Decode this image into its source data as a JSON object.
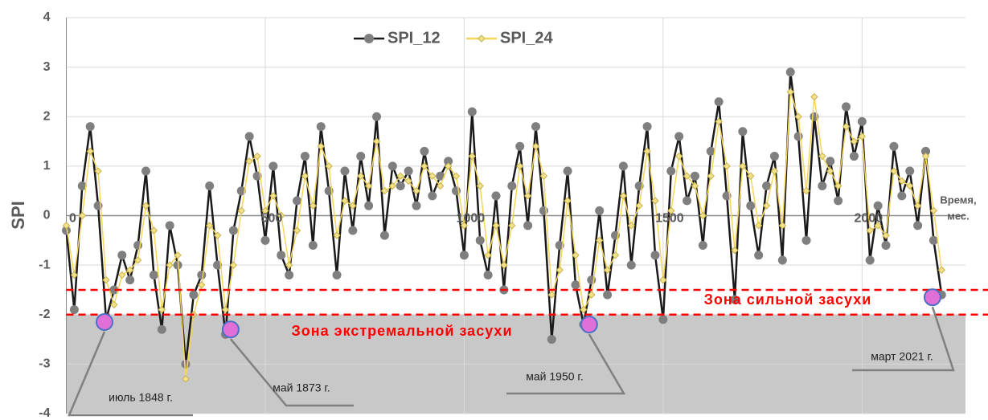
{
  "chart_data": {
    "type": "line",
    "y_label": "SPI",
    "x_label_lines": [
      "Время,",
      "мес."
    ],
    "x": [
      0,
      20,
      40,
      60,
      80,
      100,
      120,
      140,
      160,
      180,
      200,
      220,
      240,
      260,
      280,
      300,
      320,
      340,
      360,
      380,
      400,
      420,
      440,
      460,
      480,
      500,
      520,
      540,
      560,
      580,
      600,
      620,
      640,
      660,
      680,
      700,
      720,
      740,
      760,
      780,
      800,
      820,
      840,
      860,
      880,
      900,
      920,
      940,
      960,
      980,
      1000,
      1020,
      1040,
      1060,
      1080,
      1100,
      1120,
      1140,
      1160,
      1180,
      1200,
      1220,
      1240,
      1260,
      1280,
      1300,
      1320,
      1340,
      1360,
      1380,
      1400,
      1420,
      1440,
      1460,
      1480,
      1500,
      1520,
      1540,
      1560,
      1580,
      1600,
      1620,
      1640,
      1660,
      1680,
      1700,
      1720,
      1740,
      1760,
      1780,
      1800,
      1820,
      1840,
      1860,
      1880,
      1900,
      1920,
      1940,
      1960,
      1980,
      2000,
      2020,
      2040,
      2060,
      2080,
      2100,
      2120,
      2140,
      2160,
      2180,
      2200
    ],
    "series": [
      {
        "name": "SPI_12",
        "color": "#7f7f7f",
        "line_color": "#1a1a1a",
        "marker": "circle",
        "values": [
          -0.3,
          -1.9,
          0.6,
          1.8,
          0.2,
          -2.1,
          -1.5,
          -0.8,
          -1.3,
          -0.6,
          0.9,
          -1.2,
          -2.3,
          -0.2,
          -1.0,
          -3.0,
          -1.6,
          -1.2,
          0.6,
          -1.0,
          -2.4,
          -0.3,
          0.5,
          1.6,
          0.8,
          -0.5,
          1.0,
          -0.8,
          -1.2,
          0.3,
          1.2,
          -0.6,
          1.8,
          0.5,
          -1.2,
          0.9,
          -0.3,
          1.2,
          0.2,
          2.0,
          -0.4,
          1.0,
          0.6,
          0.9,
          0.2,
          1.3,
          0.4,
          0.8,
          1.1,
          0.5,
          -0.8,
          2.1,
          -0.5,
          -1.2,
          0.4,
          -1.5,
          0.6,
          1.4,
          -0.2,
          1.8,
          0.1,
          -2.5,
          -0.6,
          0.9,
          -1.4,
          -2.2,
          -1.3,
          0.1,
          -1.6,
          -0.4,
          1.0,
          -1.0,
          0.6,
          1.8,
          -0.8,
          -2.1,
          0.9,
          1.6,
          0.3,
          0.8,
          -0.6,
          1.3,
          2.3,
          0.4,
          -1.7,
          1.7,
          0.2,
          -0.8,
          0.6,
          1.2,
          -0.9,
          2.9,
          1.6,
          -0.5,
          2.0,
          0.6,
          1.1,
          0.3,
          2.2,
          1.2,
          1.9,
          -0.9,
          0.2,
          -0.6,
          1.4,
          0.4,
          0.9,
          -0.2,
          1.3,
          -0.5,
          -1.6
        ]
      },
      {
        "name": "SPI_24",
        "color": "#f2e38a",
        "line_color": "#f5d55a",
        "marker": "diamond",
        "values": [
          -0.2,
          -1.2,
          0.0,
          1.3,
          0.9,
          -1.3,
          -1.8,
          -1.2,
          -1.1,
          -0.9,
          0.2,
          -0.3,
          -1.9,
          -1.0,
          -0.8,
          -3.3,
          -2.0,
          -1.4,
          -0.2,
          -0.4,
          -1.9,
          -1.0,
          0.1,
          1.1,
          1.2,
          0.1,
          0.4,
          0.0,
          -1.0,
          -0.3,
          0.8,
          0.2,
          1.4,
          1.0,
          -0.4,
          0.3,
          0.2,
          0.8,
          0.6,
          1.5,
          0.5,
          0.6,
          0.8,
          0.7,
          0.5,
          1.0,
          0.8,
          0.6,
          1.0,
          0.8,
          -0.2,
          1.2,
          0.6,
          -0.8,
          -0.2,
          -1.0,
          -0.2,
          1.0,
          0.4,
          1.4,
          0.8,
          -1.6,
          -1.1,
          0.3,
          -0.8,
          -1.9,
          -1.6,
          -0.5,
          -1.1,
          -0.8,
          0.4,
          -0.2,
          0.2,
          1.3,
          0.3,
          -1.3,
          0.1,
          1.2,
          0.8,
          0.6,
          0.0,
          0.8,
          1.9,
          1.0,
          -0.7,
          1.0,
          0.8,
          -0.2,
          0.2,
          0.9,
          -0.2,
          2.5,
          2.0,
          0.5,
          2.4,
          1.2,
          0.9,
          0.6,
          1.8,
          1.5,
          1.6,
          -0.3,
          -0.2,
          -0.4,
          0.9,
          0.7,
          0.6,
          0.2,
          1.2,
          0.1,
          -1.1
        ]
      }
    ],
    "xlim": [
      0,
      2260
    ],
    "ylim": [
      -4,
      4
    ],
    "xticks": [
      0,
      500,
      1000,
      1500,
      2000
    ],
    "yticks": [
      -4,
      -3,
      -2,
      -1,
      0,
      1,
      2,
      3,
      4
    ],
    "grid": true,
    "legend": "top",
    "zones": [
      {
        "label": "Зона сильной засухи",
        "threshold": -1.5,
        "color": "#ff0000"
      },
      {
        "label": "Зона экстремальной засухи",
        "threshold": -2,
        "color": "#ff0000",
        "fill": "#c8c8c8"
      }
    ],
    "annotations": [
      {
        "text": "июль 1848 г.",
        "x": 96,
        "y": -2.15
      },
      {
        "text": "май 1873 г.",
        "x": 413,
        "y": -2.3
      },
      {
        "text": "май 1950 г.",
        "x": 1314,
        "y": -2.2
      },
      {
        "text": "март 2021 г.",
        "x": 2177,
        "y": -1.65
      }
    ]
  }
}
